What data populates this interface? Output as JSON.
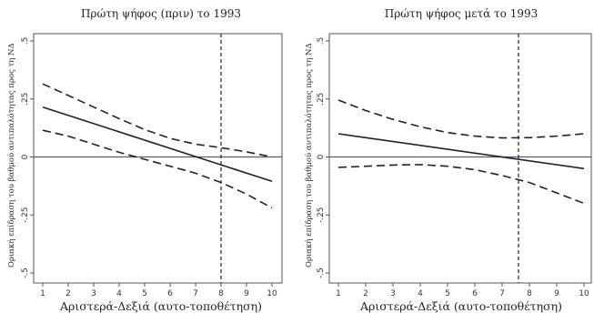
{
  "chart_data": [
    {
      "type": "line",
      "title": "Πρώτη ψήφος (πριν) το 1993",
      "xlabel": "Αριστερά-Δεξιά (αυτο-τοποθέτηση)",
      "ylabel": "Οριακή επίδραση του βαθμού αντιπαλότητας προς τη ΝΔ",
      "xlim": [
        1,
        10
      ],
      "ylim": [
        -0.5,
        0.5
      ],
      "x_ticks": [
        "1",
        "2",
        "3",
        "4",
        "5",
        "6",
        "7",
        "8",
        "9",
        "10"
      ],
      "y_ticks": [
        ".5",
        ".25",
        "0",
        "-.25",
        "-.5"
      ],
      "y_tick_values": [
        0.5,
        0.25,
        0,
        -0.25,
        -0.5
      ],
      "reference_line_x": 8,
      "zero_line": true,
      "series": [
        {
          "role": "estimate",
          "style": "solid",
          "x": [
            1,
            10
          ],
          "y": [
            0.215,
            -0.105
          ]
        },
        {
          "role": "upper",
          "style": "dashed",
          "x": [
            1,
            2,
            3,
            4,
            5,
            6,
            7,
            8,
            9,
            10
          ],
          "y": [
            0.315,
            0.265,
            0.215,
            0.165,
            0.118,
            0.08,
            0.055,
            0.04,
            0.022,
            0.0
          ]
        },
        {
          "role": "lower",
          "style": "dashed",
          "x": [
            1,
            2,
            3,
            4,
            5,
            6,
            7,
            8,
            9,
            10
          ],
          "y": [
            0.115,
            0.09,
            0.055,
            0.02,
            -0.01,
            -0.04,
            -0.07,
            -0.11,
            -0.16,
            -0.22
          ]
        }
      ]
    },
    {
      "type": "line",
      "title": "Πρώτη ψήφος μετά το 1993",
      "xlabel": "Αριστερά-Δεξιά (αυτο-τοποθέτηση)",
      "ylabel": "Οριακή επίδραση του βαθμού αντιπαλότητας προς τη ΝΔ",
      "xlim": [
        1,
        10
      ],
      "ylim": [
        -0.5,
        0.5
      ],
      "x_ticks": [
        "1",
        "2",
        "3",
        "4",
        "5",
        "6",
        "7",
        "8",
        "9",
        "10"
      ],
      "y_ticks": [
        ".5",
        ".25",
        "0",
        "-.25",
        "-.5"
      ],
      "y_tick_values": [
        0.5,
        0.25,
        0,
        -0.25,
        -0.5
      ],
      "reference_line_x": 7.6,
      "zero_line": true,
      "series": [
        {
          "role": "estimate",
          "style": "solid",
          "x": [
            1,
            10
          ],
          "y": [
            0.1,
            -0.05
          ]
        },
        {
          "role": "upper",
          "style": "dashed",
          "x": [
            1,
            2,
            3,
            4,
            5,
            6,
            7,
            8,
            9,
            10
          ],
          "y": [
            0.245,
            0.2,
            0.162,
            0.13,
            0.105,
            0.09,
            0.082,
            0.083,
            0.09,
            0.1
          ]
        },
        {
          "role": "lower",
          "style": "dashed",
          "x": [
            1,
            2,
            3,
            4,
            5,
            6,
            7,
            8,
            9,
            10
          ],
          "y": [
            -0.045,
            -0.04,
            -0.035,
            -0.033,
            -0.04,
            -0.055,
            -0.08,
            -0.11,
            -0.155,
            -0.2
          ]
        }
      ]
    }
  ]
}
